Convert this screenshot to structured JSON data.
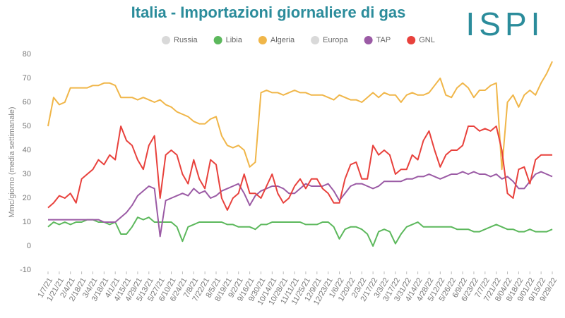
{
  "chart_data": {
    "type": "line",
    "title": "Italia - Importazioni giornaliere di gas",
    "logo": "ISPI",
    "y_label": "Mmc/giorno (media settimanale)",
    "ylim": [
      -10,
      80
    ],
    "yticks": [
      -10,
      0,
      10,
      20,
      30,
      40,
      50,
      60,
      70,
      80
    ],
    "grid": false,
    "legend_position": "top",
    "categories": [
      "1/7/21",
      null,
      "1/21/21",
      null,
      "2/4/21",
      null,
      "2/18/21",
      null,
      "3/4/21",
      null,
      "3/18/21",
      null,
      "4/1/21",
      null,
      "4/15/21",
      null,
      "4/29/21",
      null,
      "5/13/21",
      null,
      "5/27/21",
      null,
      "6/10/21",
      null,
      "6/24/21",
      null,
      "7/8/21",
      null,
      "7/22/21",
      null,
      "8/5/21",
      null,
      "8/19/21",
      null,
      "9/2/21",
      null,
      "9/16/21",
      null,
      "9/30/21",
      null,
      "10/14/21",
      null,
      "10/28/21",
      null,
      "11/11/21",
      null,
      "11/25/21",
      null,
      "12/9/21",
      null,
      "12/23/21",
      null,
      "1/6/22",
      null,
      "1/20/22",
      null,
      "2/3/22",
      null,
      "2/17/22",
      null,
      "3/3/22",
      null,
      "3/17/22",
      null,
      "3/31/22",
      null,
      "4/14/22",
      null,
      "4/28/22",
      null,
      "5/12/22",
      null,
      "5/26/22",
      null,
      "6/9/22",
      null,
      "6/23/22",
      null,
      "7/7/22",
      null,
      "7/21/22",
      null,
      "8/04/22",
      null,
      "8/18/22",
      null,
      "9/01/22",
      null,
      "9/15/22",
      null,
      "9/29/22"
    ],
    "series": [
      {
        "name": "Russia",
        "color": "#d9d9d9",
        "visible": false
      },
      {
        "name": "Libia",
        "color": "#5cb85c",
        "visible": true,
        "values": [
          8,
          10,
          9,
          10,
          9,
          10,
          10,
          11,
          11,
          10,
          10,
          9,
          10,
          5,
          5,
          8,
          12,
          11,
          12,
          10,
          10,
          10,
          10,
          8,
          2,
          8,
          9,
          10,
          10,
          10,
          10,
          10,
          9,
          9,
          8,
          8,
          8,
          7,
          9,
          9,
          10,
          10,
          10,
          10,
          10,
          10,
          9,
          9,
          9,
          10,
          10,
          8,
          3,
          7,
          8,
          8,
          7,
          5,
          0,
          6,
          7,
          6,
          1,
          5,
          8,
          9,
          10,
          8,
          8,
          8,
          8,
          8,
          8,
          7,
          7,
          7,
          6,
          6,
          7,
          8,
          9,
          8,
          7,
          7,
          6,
          6,
          7,
          6,
          6,
          6,
          7
        ]
      },
      {
        "name": "Algeria",
        "color": "#f0b649",
        "visible": true,
        "values": [
          50,
          62,
          59,
          60,
          66,
          66,
          66,
          66,
          67,
          67,
          68,
          68,
          67,
          62,
          62,
          62,
          61,
          62,
          61,
          60,
          61,
          59,
          58,
          56,
          55,
          54,
          52,
          51,
          51,
          53,
          54,
          46,
          42,
          41,
          42,
          40,
          33,
          35,
          64,
          65,
          64,
          64,
          63,
          64,
          65,
          64,
          64,
          63,
          63,
          63,
          62,
          61,
          63,
          62,
          61,
          61,
          60,
          62,
          64,
          62,
          64,
          63,
          63,
          60,
          63,
          64,
          63,
          63,
          64,
          67,
          70,
          63,
          62,
          66,
          68,
          66,
          62,
          65,
          65,
          67,
          68,
          32,
          60,
          63,
          58,
          63,
          65,
          63,
          68,
          72,
          77
        ]
      },
      {
        "name": "Europa",
        "color": "#d9d9d9",
        "visible": false
      },
      {
        "name": "TAP",
        "color": "#9b5ba5",
        "visible": true,
        "values": [
          11,
          11,
          11,
          11,
          11,
          11,
          11,
          11,
          11,
          11,
          10,
          10,
          10,
          12,
          14,
          17,
          21,
          23,
          25,
          24,
          4,
          19,
          20,
          21,
          22,
          21,
          24,
          22,
          23,
          20,
          21,
          23,
          24,
          25,
          26,
          22,
          17,
          21,
          23,
          24,
          25,
          25,
          24,
          22,
          22,
          24,
          26,
          25,
          25,
          25,
          26,
          23,
          19,
          22,
          25,
          26,
          26,
          25,
          24,
          25,
          27,
          27,
          27,
          27,
          28,
          28,
          29,
          29,
          30,
          29,
          28,
          29,
          30,
          30,
          31,
          30,
          31,
          30,
          30,
          29,
          30,
          28,
          29,
          27,
          24,
          24,
          27,
          30,
          31,
          30,
          29
        ]
      },
      {
        "name": "GNL",
        "color": "#e8413c",
        "visible": true,
        "values": [
          16,
          18,
          21,
          20,
          22,
          18,
          28,
          30,
          32,
          36,
          34,
          38,
          36,
          50,
          44,
          42,
          36,
          32,
          42,
          46,
          20,
          38,
          40,
          38,
          30,
          26,
          36,
          28,
          24,
          36,
          34,
          20,
          15,
          20,
          22,
          30,
          22,
          22,
          20,
          25,
          30,
          22,
          18,
          20,
          25,
          28,
          24,
          28,
          28,
          24,
          22,
          18,
          18,
          28,
          34,
          35,
          28,
          28,
          42,
          38,
          40,
          38,
          30,
          32,
          32,
          38,
          36,
          44,
          48,
          40,
          33,
          38,
          40,
          40,
          42,
          50,
          50,
          48,
          49,
          48,
          50,
          40,
          22,
          20,
          32,
          33,
          26,
          36,
          38,
          38,
          38
        ]
      }
    ]
  }
}
